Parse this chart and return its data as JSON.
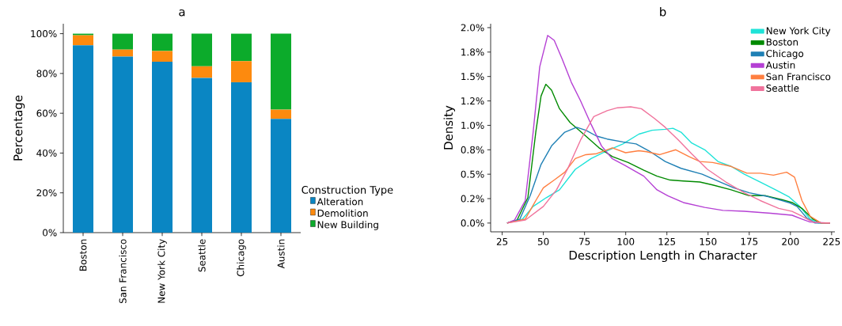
{
  "chart_data": [
    {
      "type": "bar",
      "title": "a",
      "ylabel": "Percentage",
      "stacked": true,
      "categories": [
        "Boston",
        "San Francisco",
        "New York City",
        "Seattle",
        "Chicago",
        "Austin"
      ],
      "series": [
        {
          "name": "Alteration",
          "color": "#0a86c3",
          "values": [
            94.2,
            88.5,
            85.9,
            77.8,
            75.6,
            57.2
          ]
        },
        {
          "name": "Demolition",
          "color": "#fd8a0e",
          "values": [
            5.0,
            3.5,
            5.4,
            5.8,
            10.6,
            4.6
          ]
        },
        {
          "name": "New Building",
          "color": "#0cab2b",
          "values": [
            0.8,
            8.0,
            8.7,
            16.4,
            13.8,
            38.2
          ]
        }
      ],
      "ylim": [
        0,
        105
      ],
      "yticks": [
        {
          "value": 0,
          "label": "0%"
        },
        {
          "value": 20,
          "label": "20%"
        },
        {
          "value": 40,
          "label": "40%"
        },
        {
          "value": 60,
          "label": "60%"
        },
        {
          "value": 80,
          "label": "80%"
        },
        {
          "value": 100,
          "label": "100%"
        }
      ],
      "legend": "bottom right",
      "legend_title": "Construction Type"
    },
    {
      "type": "line",
      "title": "b",
      "xlabel": "Description Length in Character",
      "ylabel": "Density",
      "series": [
        {
          "name": "New York City",
          "color": "#1ee3d8",
          "x": [
            28,
            37.3,
            43.8,
            51.8,
            59.8,
            69.4,
            79,
            88.7,
            98.3,
            108,
            116,
            124,
            128.7,
            133.6,
            140,
            148,
            156,
            164,
            172,
            181.7,
            191,
            199,
            205.7,
            212,
            217,
            224
          ],
          "values": [
            0,
            0.04,
            0.17,
            0.26,
            0.34,
            0.55,
            0.66,
            0.74,
            0.81,
            0.91,
            0.95,
            0.96,
            0.97,
            0.93,
            0.82,
            0.75,
            0.63,
            0.58,
            0.5,
            0.42,
            0.34,
            0.27,
            0.17,
            0.04,
            0,
            0
          ]
        },
        {
          "name": "Boston",
          "color": "#008a00",
          "x": [
            28,
            34,
            40.6,
            45.4,
            48.6,
            51.5,
            55,
            59.8,
            66.2,
            75.8,
            83.8,
            91.9,
            101.5,
            111,
            119,
            127,
            135,
            145,
            152.8,
            164,
            175,
            185,
            194.6,
            201,
            207,
            213.7,
            218.6,
            224
          ],
          "values": [
            0,
            0.03,
            0.26,
            0.93,
            1.3,
            1.42,
            1.36,
            1.17,
            1.03,
            0.89,
            0.77,
            0.68,
            0.62,
            0.54,
            0.48,
            0.44,
            0.43,
            0.42,
            0.39,
            0.34,
            0.28,
            0.28,
            0.24,
            0.21,
            0.15,
            0.04,
            0,
            0
          ]
        },
        {
          "name": "Chicago",
          "color": "#1f80b5",
          "x": [
            28,
            35.7,
            42,
            48.6,
            55,
            63,
            70.2,
            75.8,
            82.3,
            88.7,
            98.3,
            106.3,
            114,
            124,
            133.6,
            146.4,
            156,
            165.6,
            175,
            186.5,
            199,
            204,
            210,
            215,
            224
          ],
          "values": [
            0,
            0.04,
            0.28,
            0.6,
            0.79,
            0.93,
            0.98,
            0.95,
            0.89,
            0.86,
            0.83,
            0.81,
            0.74,
            0.63,
            0.56,
            0.5,
            0.43,
            0.36,
            0.31,
            0.27,
            0.21,
            0.17,
            0.05,
            0,
            0
          ]
        },
        {
          "name": "Austin",
          "color": "#b540d4",
          "x": [
            28,
            32.5,
            39,
            43.8,
            47.8,
            52.6,
            56.6,
            61.4,
            67,
            72.6,
            79,
            85.3,
            91.7,
            99.6,
            111,
            119,
            125.5,
            135,
            148,
            159,
            172,
            188,
            201,
            207,
            212,
            224
          ],
          "values": [
            0,
            0.03,
            0.23,
            0.93,
            1.6,
            1.92,
            1.87,
            1.68,
            1.44,
            1.25,
            1.01,
            0.79,
            0.66,
            0.59,
            0.48,
            0.34,
            0.28,
            0.21,
            0.16,
            0.13,
            0.12,
            0.1,
            0.08,
            0.04,
            0.01,
            0
          ]
        },
        {
          "name": "San Francisco",
          "color": "#ff7f40",
          "x": [
            28,
            39,
            45.4,
            50,
            56.6,
            63,
            69.4,
            75.8,
            82.3,
            91.9,
            99.9,
            108,
            112.7,
            120.7,
            130.4,
            138.4,
            145,
            152.8,
            164,
            173.6,
            181.7,
            189.7,
            197.7,
            202.5,
            207,
            212,
            218.6,
            224
          ],
          "values": [
            0,
            0.04,
            0.23,
            0.36,
            0.44,
            0.52,
            0.66,
            0.7,
            0.71,
            0.77,
            0.72,
            0.74,
            0.73,
            0.7,
            0.75,
            0.68,
            0.63,
            0.62,
            0.58,
            0.51,
            0.51,
            0.49,
            0.52,
            0.47,
            0.23,
            0.07,
            0,
            0
          ]
        },
        {
          "name": "Seattle",
          "color": "#f0739c",
          "x": [
            28,
            39,
            50,
            58,
            64.6,
            72.6,
            80.6,
            88.7,
            95,
            103,
            109.5,
            117.5,
            124,
            132,
            140,
            149.6,
            160.8,
            172,
            181.7,
            192.9,
            201,
            207,
            213.7,
            220,
            224
          ],
          "values": [
            0,
            0.03,
            0.17,
            0.34,
            0.55,
            0.85,
            1.09,
            1.15,
            1.18,
            1.19,
            1.17,
            1.07,
            0.98,
            0.85,
            0.71,
            0.55,
            0.42,
            0.31,
            0.23,
            0.15,
            0.12,
            0.07,
            0.01,
            0,
            0
          ]
        }
      ],
      "xlim": [
        18,
        227
      ],
      "ylim": [
        -0.09,
        2.04
      ],
      "xticks": [
        25,
        50,
        75,
        100,
        125,
        150,
        175,
        200,
        225
      ],
      "yticks": [
        {
          "value": 0,
          "label": "0.0%"
        },
        {
          "value": 0.25,
          "label": "0.2%"
        },
        {
          "value": 0.5,
          "label": "0.5%"
        },
        {
          "value": 0.75,
          "label": "0.8%"
        },
        {
          "value": 1.0,
          "label": "1.0%"
        },
        {
          "value": 1.25,
          "label": "1.2%"
        },
        {
          "value": 1.5,
          "label": "1.5%"
        },
        {
          "value": 1.75,
          "label": "1.8%"
        },
        {
          "value": 2.0,
          "label": "2.0%"
        }
      ],
      "legend": "top right"
    }
  ]
}
